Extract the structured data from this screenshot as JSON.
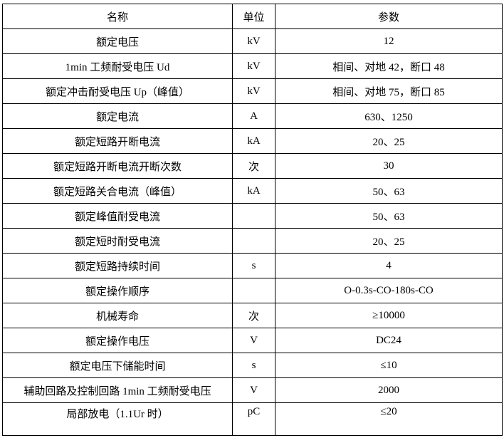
{
  "table": {
    "headers": [
      "名称",
      "单位",
      "参数"
    ],
    "rows": [
      [
        "额定电压",
        "kV",
        "12"
      ],
      [
        "1min 工频耐受电压 Ud",
        "kV",
        "相间、对地 42，断口 48"
      ],
      [
        "额定冲击耐受电压 Up（峰值）",
        "kV",
        "相间、对地 75，断口 85"
      ],
      [
        "额定电流",
        "A",
        "630、1250"
      ],
      [
        "额定短路开断电流",
        "kA",
        "20、25"
      ],
      [
        "额定短路开断电流开断次数",
        "次",
        "30"
      ],
      [
        "额定短路关合电流（峰值）",
        "kA",
        "50、63"
      ],
      [
        "额定峰值耐受电流",
        "",
        "50、63"
      ],
      [
        "额定短时耐受电流",
        "",
        "20、25"
      ],
      [
        "额定短路持续时间",
        "s",
        "4"
      ],
      [
        "额定操作顺序",
        "",
        "O-0.3s-CO-180s-CO"
      ],
      [
        "机械寿命",
        "次",
        "≥10000"
      ],
      [
        "额定操作电压",
        "V",
        "DC24"
      ],
      [
        "额定电压下储能时间",
        "s",
        "≤10"
      ],
      [
        "辅助回路及控制回路 1min 工频耐受电压",
        "V",
        "2000"
      ],
      [
        "局部放电（1.1Ur 时）",
        "pC",
        "≤20"
      ]
    ]
  }
}
